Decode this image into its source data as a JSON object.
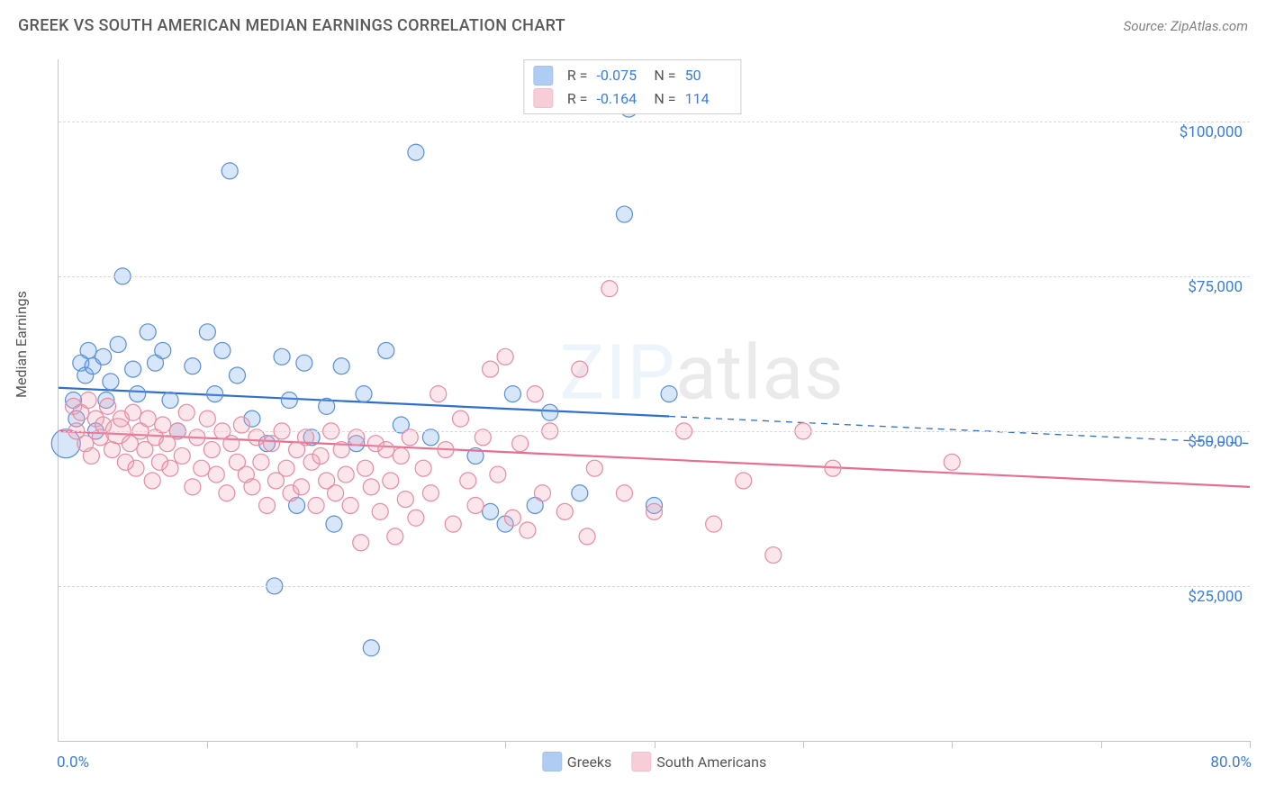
{
  "title": "GREEK VS SOUTH AMERICAN MEDIAN EARNINGS CORRELATION CHART",
  "source_label": "Source: ZipAtlas.com",
  "watermark": "ZIPatlas",
  "y_axis_label": "Median Earnings",
  "chart": {
    "type": "scatter",
    "xlim": [
      0,
      80
    ],
    "ylim": [
      0,
      110000
    ],
    "x_min_label": "0.0%",
    "x_max_label": "80.0%",
    "x_tick_positions": [
      0,
      10,
      20,
      30,
      40,
      50,
      60,
      70,
      80
    ],
    "y_ticks": [
      {
        "v": 25000,
        "label": "$25,000"
      },
      {
        "v": 50000,
        "label": "$50,000"
      },
      {
        "v": 75000,
        "label": "$75,000"
      },
      {
        "v": 100000,
        "label": "$100,000"
      }
    ],
    "y_grid_at": [
      25000,
      50000,
      75000,
      100000
    ],
    "background_color": "#ffffff",
    "grid_color": "#d9d9d9",
    "axis_color": "#c4c4c4",
    "marker_radius": 9,
    "marker_stroke_width": 1.2,
    "marker_fill_opacity": 0.28,
    "series": [
      {
        "id": "greeks",
        "label": "Greeks",
        "color": "#6fa4e8",
        "stroke": "#5a8fd6",
        "R": "-0.075",
        "N": "50",
        "trend": {
          "y_at_xmin": 57000,
          "y_at_xmax": 48000,
          "solid_until_x": 41,
          "line_color": "#2f6fd0",
          "line_width": 2.2
        },
        "points": [
          [
            0.5,
            48000,
            16
          ],
          [
            1,
            55000
          ],
          [
            1.2,
            52000
          ],
          [
            1.5,
            61000
          ],
          [
            1.8,
            59000
          ],
          [
            2,
            63000
          ],
          [
            2.3,
            60500
          ],
          [
            2.5,
            50000
          ],
          [
            3,
            62000
          ],
          [
            3.2,
            55000
          ],
          [
            3.5,
            58000
          ],
          [
            4,
            64000
          ],
          [
            4.3,
            75000
          ],
          [
            5,
            60000
          ],
          [
            5.3,
            56000
          ],
          [
            6,
            66000
          ],
          [
            6.5,
            61000
          ],
          [
            7,
            63000
          ],
          [
            7.5,
            55000
          ],
          [
            8,
            50000
          ],
          [
            9,
            60500
          ],
          [
            10,
            66000
          ],
          [
            10.5,
            56000
          ],
          [
            11,
            63000
          ],
          [
            11.5,
            92000
          ],
          [
            12,
            59000
          ],
          [
            13,
            52000
          ],
          [
            14,
            48000
          ],
          [
            14.5,
            25000
          ],
          [
            15,
            62000
          ],
          [
            15.5,
            55000
          ],
          [
            16,
            38000
          ],
          [
            16.5,
            61000
          ],
          [
            17,
            49000
          ],
          [
            18,
            54000
          ],
          [
            18.5,
            35000
          ],
          [
            19,
            60500
          ],
          [
            20,
            48000
          ],
          [
            20.5,
            56000
          ],
          [
            21,
            15000
          ],
          [
            22,
            63000
          ],
          [
            23,
            51000
          ],
          [
            24,
            95000
          ],
          [
            25,
            49000
          ],
          [
            28,
            46000
          ],
          [
            29,
            37000
          ],
          [
            30,
            35000
          ],
          [
            30.5,
            56000
          ],
          [
            32,
            38000
          ],
          [
            33,
            53000
          ],
          [
            35,
            40000
          ],
          [
            38,
            85000
          ],
          [
            38.3,
            102000
          ],
          [
            40,
            38000
          ],
          [
            41,
            56000
          ]
        ]
      },
      {
        "id": "south_americans",
        "label": "South Americans",
        "color": "#f2a5b8",
        "stroke": "#e88aa3",
        "R": "-0.164",
        "N": "114",
        "trend": {
          "y_at_xmin": 50000,
          "y_at_xmax": 41000,
          "solid_until_x": 80,
          "line_color": "#e86d90",
          "line_width": 2.2
        },
        "points": [
          [
            1,
            54000
          ],
          [
            1.2,
            50000
          ],
          [
            1.5,
            53000
          ],
          [
            1.8,
            48000
          ],
          [
            2,
            55000
          ],
          [
            2.2,
            46000
          ],
          [
            2.5,
            52000
          ],
          [
            2.8,
            49000
          ],
          [
            3,
            51000
          ],
          [
            3.3,
            54000
          ],
          [
            3.6,
            47000
          ],
          [
            4,
            50000,
            14
          ],
          [
            4.2,
            52000
          ],
          [
            4.5,
            45000
          ],
          [
            4.8,
            48000
          ],
          [
            5,
            53000
          ],
          [
            5.2,
            44000
          ],
          [
            5.5,
            50000
          ],
          [
            5.8,
            47000
          ],
          [
            6,
            52000
          ],
          [
            6.3,
            42000
          ],
          [
            6.5,
            49000
          ],
          [
            6.8,
            45000
          ],
          [
            7,
            51000
          ],
          [
            7.3,
            48000
          ],
          [
            7.5,
            44000
          ],
          [
            8,
            50000
          ],
          [
            8.3,
            46000
          ],
          [
            8.6,
            53000
          ],
          [
            9,
            41000
          ],
          [
            9.3,
            49000
          ],
          [
            9.6,
            44000
          ],
          [
            10,
            52000
          ],
          [
            10.3,
            47000
          ],
          [
            10.6,
            43000
          ],
          [
            11,
            50000
          ],
          [
            11.3,
            40000
          ],
          [
            11.6,
            48000
          ],
          [
            12,
            45000
          ],
          [
            12.3,
            51000
          ],
          [
            12.6,
            43000
          ],
          [
            13,
            41000
          ],
          [
            13.3,
            49000
          ],
          [
            13.6,
            45000
          ],
          [
            14,
            38000
          ],
          [
            14.3,
            48000
          ],
          [
            14.6,
            42000
          ],
          [
            15,
            50000
          ],
          [
            15.3,
            44000
          ],
          [
            15.6,
            40000
          ],
          [
            16,
            47000
          ],
          [
            16.3,
            41000
          ],
          [
            16.6,
            49000
          ],
          [
            17,
            45000
          ],
          [
            17.3,
            38000
          ],
          [
            17.6,
            46000
          ],
          [
            18,
            42000
          ],
          [
            18.3,
            50000
          ],
          [
            18.6,
            40000
          ],
          [
            19,
            47000
          ],
          [
            19.3,
            43000
          ],
          [
            19.6,
            38000
          ],
          [
            20,
            49000
          ],
          [
            20.3,
            32000
          ],
          [
            20.6,
            44000
          ],
          [
            21,
            41000
          ],
          [
            21.3,
            48000
          ],
          [
            21.6,
            37000
          ],
          [
            22,
            47000
          ],
          [
            22.3,
            42000
          ],
          [
            22.6,
            33000
          ],
          [
            23,
            46000
          ],
          [
            23.3,
            39000
          ],
          [
            23.6,
            49000
          ],
          [
            24,
            36000
          ],
          [
            24.5,
            44000
          ],
          [
            25,
            40000
          ],
          [
            25.5,
            56000
          ],
          [
            26,
            47000
          ],
          [
            26.5,
            35000
          ],
          [
            27,
            52000
          ],
          [
            27.5,
            42000
          ],
          [
            28,
            38000
          ],
          [
            28.5,
            49000
          ],
          [
            29,
            60000
          ],
          [
            29.5,
            43000
          ],
          [
            30,
            62000
          ],
          [
            30.5,
            36000
          ],
          [
            31,
            48000
          ],
          [
            31.5,
            34000
          ],
          [
            32,
            56000
          ],
          [
            32.5,
            40000
          ],
          [
            33,
            50000
          ],
          [
            34,
            37000
          ],
          [
            35,
            60000
          ],
          [
            35.5,
            33000
          ],
          [
            36,
            44000
          ],
          [
            37,
            73000
          ],
          [
            38,
            40000
          ],
          [
            40,
            37000
          ],
          [
            42,
            50000
          ],
          [
            44,
            35000
          ],
          [
            46,
            42000
          ],
          [
            48,
            30000
          ],
          [
            50,
            50000
          ],
          [
            52,
            44000
          ],
          [
            60,
            45000
          ]
        ]
      }
    ]
  },
  "colors": {
    "text_primary": "#5a5a5a",
    "text_secondary": "#808080",
    "tick_value": "#3b7ddb"
  }
}
